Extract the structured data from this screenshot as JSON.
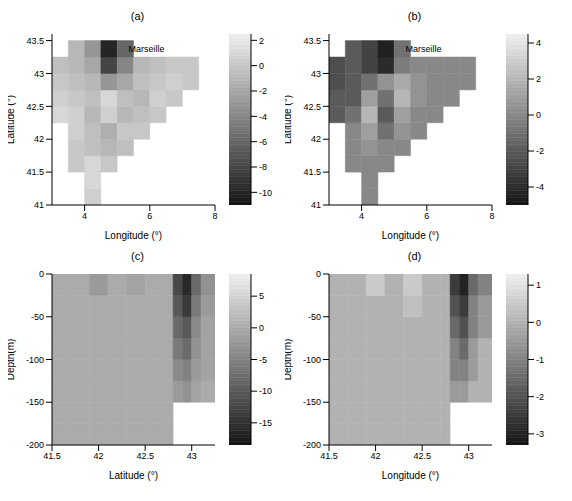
{
  "chart_data": [
    {
      "type": "heatmap",
      "title": "(a)",
      "x_label": "Longitude (°)",
      "y_label": "Latitude (°)",
      "xlim": [
        3,
        8
      ],
      "xticks": [
        4,
        6,
        8
      ],
      "ylim": [
        41,
        43.6
      ],
      "yticks": [
        41,
        41.5,
        42,
        42.5,
        43,
        43.5
      ],
      "x_edges": [
        3,
        3.5,
        4,
        4.5,
        5,
        5.5,
        6,
        6.5,
        7,
        7.5,
        8
      ],
      "y_edges": [
        41,
        41.25,
        41.5,
        41.75,
        42,
        42.25,
        42.5,
        42.75,
        43,
        43.25,
        43.5
      ],
      "cells": [
        [
          null,
          null,
          0.5,
          null,
          null,
          null,
          null,
          null,
          null,
          null
        ],
        [
          null,
          null,
          1,
          null,
          null,
          null,
          null,
          null,
          null,
          null
        ],
        [
          null,
          0,
          1,
          0,
          null,
          null,
          null,
          null,
          null,
          null
        ],
        [
          null,
          0,
          -0.5,
          -1,
          -0.5,
          null,
          null,
          null,
          null,
          null
        ],
        [
          null,
          0.5,
          -0.5,
          -1.5,
          0,
          0,
          null,
          null,
          null,
          null
        ],
        [
          1,
          0.5,
          -1,
          0.5,
          -1,
          -0.5,
          0,
          null,
          null,
          null
        ],
        [
          0.5,
          0,
          -0.5,
          1,
          -0.5,
          -1,
          0.5,
          0,
          null,
          null
        ],
        [
          0,
          -0.5,
          -1,
          -3,
          -2,
          -0.5,
          0,
          0.5,
          0,
          null
        ],
        [
          -0.5,
          -1,
          -2,
          -8,
          -4,
          -1,
          -0.5,
          0,
          0,
          null
        ],
        [
          null,
          -1,
          -3,
          -10,
          -6,
          null,
          null,
          null,
          null,
          null
        ]
      ],
      "colorbar": {
        "lim": [
          -11,
          2.5
        ],
        "ticks": [
          2,
          0,
          -2,
          -4,
          -6,
          -8,
          -10
        ]
      },
      "annotations": [
        {
          "text": "Marseille",
          "x": 5.9,
          "y": 43.38
        }
      ]
    },
    {
      "type": "heatmap",
      "title": "(b)",
      "x_label": "Longitude (°)",
      "y_label": "Latitude (°)",
      "xlim": [
        3,
        8
      ],
      "xticks": [
        4,
        6,
        8
      ],
      "ylim": [
        41,
        43.6
      ],
      "yticks": [
        41,
        41.5,
        42,
        42.5,
        43,
        43.5
      ],
      "x_edges": [
        3,
        3.5,
        4,
        4.5,
        5,
        5.5,
        6,
        6.5,
        7,
        7.5,
        8
      ],
      "y_edges": [
        41,
        41.25,
        41.5,
        41.75,
        42,
        42.25,
        42.5,
        42.75,
        43,
        43.25,
        43.5
      ],
      "cells": [
        [
          null,
          null,
          0,
          null,
          null,
          null,
          null,
          null,
          null,
          null
        ],
        [
          null,
          null,
          0,
          null,
          null,
          null,
          null,
          null,
          null,
          null
        ],
        [
          null,
          0,
          0,
          0,
          null,
          null,
          null,
          null,
          null,
          null
        ],
        [
          null,
          0,
          0.5,
          0,
          0,
          null,
          null,
          null,
          null,
          null
        ],
        [
          null,
          0,
          1,
          -1,
          0.5,
          0,
          null,
          null,
          null,
          null
        ],
        [
          -2,
          -1,
          2,
          -2,
          1,
          0,
          0,
          null,
          null,
          null
        ],
        [
          -2,
          -2,
          1,
          -1,
          2,
          0.5,
          0,
          0,
          null,
          null
        ],
        [
          -2.5,
          -2,
          -1,
          0.5,
          1.5,
          0.5,
          0,
          0,
          0,
          null
        ],
        [
          -2.5,
          -2,
          -3,
          -4,
          -0.5,
          0,
          0,
          0,
          0,
          null
        ],
        [
          null,
          -2,
          -3,
          -4.5,
          -1,
          null,
          null,
          null,
          null,
          null
        ]
      ],
      "colorbar": {
        "lim": [
          -5,
          4.5
        ],
        "ticks": [
          4,
          2,
          0,
          -2,
          -4
        ]
      },
      "annotations": [
        {
          "text": "Marseille",
          "x": 5.9,
          "y": 43.38
        }
      ]
    },
    {
      "type": "heatmap",
      "title": "(c)",
      "x_label": "Latitude (°)",
      "y_label": "Depth(m)",
      "xlim": [
        41.5,
        43.25
      ],
      "xticks": [
        41.5,
        42,
        42.5,
        43
      ],
      "ylim": [
        -200,
        0
      ],
      "yticks": [
        -200,
        -150,
        -100,
        -50,
        0
      ],
      "x_edges": [
        41.5,
        41.7,
        41.9,
        42.1,
        42.3,
        42.5,
        42.7,
        42.8,
        42.9,
        43.0,
        43.1,
        43.25
      ],
      "y_edges": [
        -200,
        -175,
        -150,
        -125,
        -100,
        -75,
        -50,
        -25,
        0
      ],
      "cells": [
        [
          0,
          0,
          0,
          0,
          0,
          0,
          0,
          null,
          null,
          null,
          null
        ],
        [
          0,
          0,
          0,
          0,
          0,
          0,
          0,
          null,
          null,
          null,
          null
        ],
        [
          0,
          0,
          0,
          0,
          0,
          0,
          0,
          -2,
          -3,
          -1,
          0
        ],
        [
          0,
          0,
          0,
          0,
          0,
          0,
          0,
          -4,
          -5,
          -2,
          -1
        ],
        [
          0,
          0,
          0,
          0,
          0,
          0,
          0,
          -6,
          -8,
          -3,
          -1
        ],
        [
          0,
          0,
          0,
          0,
          0,
          0,
          0,
          -8,
          -10,
          -4,
          -1
        ],
        [
          0,
          0,
          0,
          0,
          0,
          0,
          0,
          -10,
          -14,
          -6,
          -2
        ],
        [
          0,
          0,
          -2,
          0,
          -1,
          0,
          0,
          -12,
          -16,
          -8,
          -3
        ]
      ],
      "colorbar": {
        "lim": [
          -18.5,
          8.5
        ],
        "ticks": [
          5,
          0,
          -5,
          -10,
          -15
        ]
      }
    },
    {
      "type": "heatmap",
      "title": "(d)",
      "x_label": "Longitude (°)",
      "y_label": "Depth(m)",
      "xlim": [
        41.5,
        43.25
      ],
      "xticks": [
        41.5,
        42,
        42.5,
        43
      ],
      "ylim": [
        -200,
        0
      ],
      "yticks": [
        -200,
        -150,
        -100,
        -50,
        0
      ],
      "x_edges": [
        41.5,
        41.7,
        41.9,
        42.1,
        42.3,
        42.5,
        42.7,
        42.8,
        42.9,
        43.0,
        43.1,
        43.25
      ],
      "y_edges": [
        -200,
        -175,
        -150,
        -125,
        -100,
        -75,
        -50,
        -25,
        0
      ],
      "cells": [
        [
          0,
          0,
          0,
          0,
          0,
          0,
          0,
          null,
          null,
          null,
          null
        ],
        [
          0,
          0,
          0,
          0,
          0,
          0,
          0,
          null,
          null,
          null,
          null
        ],
        [
          0,
          0,
          0,
          0,
          0,
          0,
          0,
          -0.5,
          -0.5,
          0,
          0
        ],
        [
          0,
          0,
          0,
          0,
          0,
          0,
          0,
          -1,
          -1,
          -0.5,
          0
        ],
        [
          0,
          0,
          0,
          0,
          0,
          0,
          0,
          -1,
          -1.5,
          -0.5,
          0
        ],
        [
          0,
          0,
          0,
          0,
          0,
          0,
          0,
          -1.5,
          -2,
          -1,
          -0.5
        ],
        [
          0,
          0,
          0,
          0,
          0.3,
          0,
          0,
          -2,
          -2.5,
          -1,
          -0.5
        ],
        [
          0,
          0,
          0.5,
          0,
          0.5,
          0,
          0,
          -2.5,
          -3,
          -1.5,
          -1
        ]
      ],
      "colorbar": {
        "lim": [
          -3.3,
          1.3
        ],
        "ticks": [
          1,
          0,
          -1,
          -2,
          -3
        ]
      }
    }
  ]
}
